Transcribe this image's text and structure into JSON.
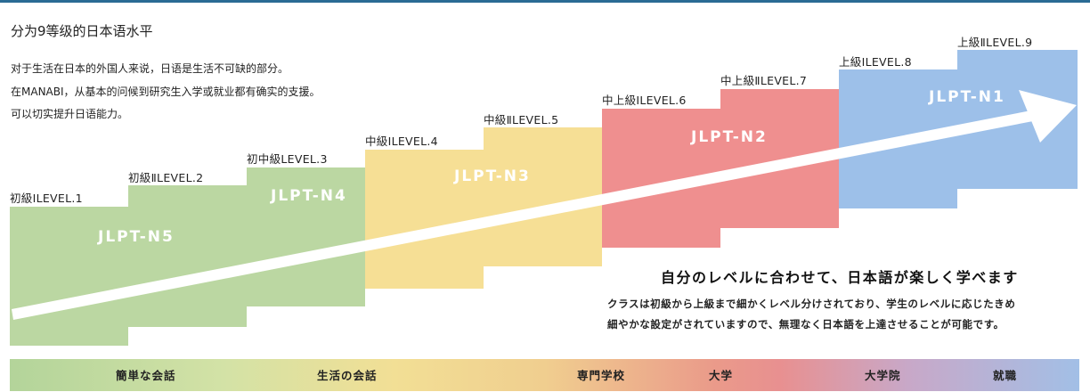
{
  "title": "分为9等级的日本语水平",
  "intro": [
    "对于生活在日本的外国人来说，日语是生活不可缺的部分。",
    "在MANABI，从基本的问候到研究生入学或就业都有确实的支援。",
    "可以切实提升日语能力。"
  ],
  "levels": [
    {
      "label": "初級ⅠLEVEL.1",
      "color": "#bbd7a2"
    },
    {
      "label": "初級ⅡLEVEL.2",
      "color": "#bbd7a2"
    },
    {
      "label": "初中級LEVEL.3",
      "color": "#bbd7a2"
    },
    {
      "label": "中級ⅠLEVEL.4",
      "color": "#f6df95"
    },
    {
      "label": "中級ⅡLEVEL.5",
      "color": "#f6df95"
    },
    {
      "label": "中上級ⅠLEVEL.6",
      "color": "#ef8f8f"
    },
    {
      "label": "中上級ⅡLEVEL.7",
      "color": "#ef8f8f"
    },
    {
      "label": "上級ⅠLEVEL.8",
      "color": "#9dc0e9"
    },
    {
      "label": "上級ⅡLEVEL.9",
      "color": "#9dc0e9"
    }
  ],
  "jlpt": [
    "JLPT-N5",
    "JLPT-N4",
    "JLPT-N3",
    "JLPT-N2",
    "JLPT-N1"
  ],
  "headline": "自分のレベルに合わせて、日本語が楽しく学べます",
  "body": [
    "クラスは初級から上級まで細かくレベル分けされており、学生のレベルに応じたきめ",
    "細やかな設定がされていますので、無理なく日本語を上達させることが可能です。"
  ],
  "bar_labels": [
    "簡単な会話",
    "生活の会話",
    "専門学校",
    "大学",
    "大学院",
    "就職"
  ]
}
